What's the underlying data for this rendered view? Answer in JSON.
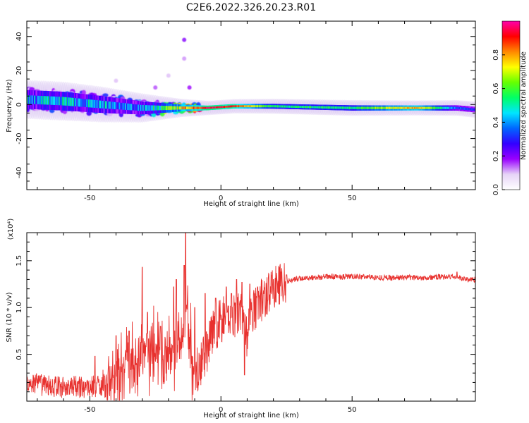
{
  "title": "C2E6.2022.326.20.23.R01",
  "colors": {
    "snr_line": "#e8312e",
    "colormap": [
      "#ffffff",
      "#e6d3f7",
      "#9900ff",
      "#3300ff",
      "#0066ff",
      "#00e5ff",
      "#00ff66",
      "#66ff00",
      "#ffff00",
      "#ff8800",
      "#ff0000",
      "#ff00aa"
    ]
  },
  "chart_data": [
    {
      "type": "heatmap",
      "xlabel": "Height of straight line (km)",
      "ylabel": "Frequency (Hz)",
      "xlim": [
        -74,
        97
      ],
      "ylim": [
        -50,
        49
      ],
      "xticks": [
        -50,
        0,
        50
      ],
      "yticks": [
        -40,
        -20,
        0,
        20,
        40
      ],
      "colorbar": {
        "label": "Normalized spectral amplitude",
        "range": [
          0.0,
          1.0
        ],
        "ticks": [
          0.0,
          0.2,
          0.4,
          0.6,
          0.8
        ]
      },
      "ridge": [
        {
          "x": -74,
          "f": 3,
          "spread": 5,
          "amp": 0.4
        },
        {
          "x": -60,
          "f": 2,
          "spread": 5,
          "amp": 0.45
        },
        {
          "x": -45,
          "f": 0,
          "spread": 4.5,
          "amp": 0.4
        },
        {
          "x": -30,
          "f": -2,
          "spread": 3.5,
          "amp": 0.38
        },
        {
          "x": -15,
          "f": -2,
          "spread": 1.8,
          "amp": 0.7
        },
        {
          "x": -5,
          "f": -2,
          "spread": 1.2,
          "amp": 0.95
        },
        {
          "x": 5,
          "f": -1,
          "spread": 1.2,
          "amp": 0.9
        },
        {
          "x": 20,
          "f": -1,
          "spread": 1.3,
          "amp": 0.55
        },
        {
          "x": 50,
          "f": -2,
          "spread": 1.4,
          "amp": 0.55
        },
        {
          "x": 75,
          "f": -2,
          "spread": 1.3,
          "amp": 0.82
        },
        {
          "x": 90,
          "f": -2,
          "spread": 1.4,
          "amp": 0.35
        },
        {
          "x": 97,
          "f": -3,
          "spread": 1.5,
          "amp": 0.3
        }
      ],
      "outliers": [
        {
          "x": -14,
          "f": 38,
          "amp": 0.2
        },
        {
          "x": -14,
          "f": 27,
          "amp": 0.12
        },
        {
          "x": -20,
          "f": 17,
          "amp": 0.1
        },
        {
          "x": -25,
          "f": 10,
          "amp": 0.15
        },
        {
          "x": -12,
          "f": 10,
          "amp": 0.18
        },
        {
          "x": -40,
          "f": 14,
          "amp": 0.1
        }
      ]
    },
    {
      "type": "line",
      "xlabel": "Height of straight line (km)",
      "ylabel": "SNR (10 * v/v)",
      "ymultiplier": "(x10⁴)",
      "xlim": [
        -74,
        97
      ],
      "ylim": [
        0,
        1.8
      ],
      "xticks": [
        -50,
        0,
        50
      ],
      "yticks": [
        0.5,
        1.0,
        1.5
      ],
      "ytick_labels": [
        "0.5",
        "1.0",
        "1.5"
      ],
      "series": [
        {
          "x": [
            -74,
            -70,
            -65,
            -60,
            -55,
            -50,
            -45,
            -42,
            -40,
            -37,
            -35,
            -32,
            -30,
            -28,
            -26,
            -24,
            -22,
            -20,
            -18,
            -16,
            -14,
            -13,
            -12,
            -11,
            -10,
            -8,
            -6,
            -4,
            -2,
            0,
            2,
            4,
            6,
            8,
            9,
            10,
            12,
            14,
            16,
            18,
            20,
            22,
            25,
            28,
            30,
            35,
            40,
            45,
            50,
            55,
            60,
            65,
            70,
            75,
            80,
            85,
            88,
            90,
            92,
            94,
            97
          ],
          "y": [
            0.2,
            0.18,
            0.16,
            0.15,
            0.15,
            0.15,
            0.18,
            0.22,
            0.28,
            0.4,
            0.45,
            0.5,
            0.55,
            0.55,
            0.55,
            0.55,
            0.5,
            0.55,
            0.6,
            0.65,
            0.85,
            1.0,
            0.75,
            0.45,
            0.3,
            0.4,
            0.5,
            0.65,
            0.8,
            0.85,
            0.9,
            0.9,
            0.95,
            1.0,
            0.75,
            0.7,
            0.95,
            1.05,
            1.1,
            1.15,
            1.22,
            1.25,
            1.28,
            1.3,
            1.31,
            1.32,
            1.33,
            1.33,
            1.33,
            1.33,
            1.32,
            1.32,
            1.32,
            1.32,
            1.32,
            1.33,
            1.33,
            1.32,
            1.31,
            1.3,
            1.3
          ]
        }
      ],
      "spikes": [
        {
          "x": -48,
          "y": 0.48
        },
        {
          "x": -40,
          "y": 0.7
        },
        {
          "x": -35,
          "y": 0.75
        },
        {
          "x": -30,
          "y": 1.43
        },
        {
          "x": -28,
          "y": 0.95
        },
        {
          "x": -23,
          "y": 0.8
        },
        {
          "x": -18,
          "y": 1.22
        },
        {
          "x": -17,
          "y": 1.3
        },
        {
          "x": -14,
          "y": 1.45
        },
        {
          "x": -13.5,
          "y": 1.81
        },
        {
          "x": -10,
          "y": 1.0
        },
        {
          "x": -6,
          "y": 1.15
        },
        {
          "x": -2,
          "y": 1.1
        },
        {
          "x": 2,
          "y": 1.22
        },
        {
          "x": 4,
          "y": 1.15
        },
        {
          "x": 6,
          "y": 1.3
        },
        {
          "x": 8,
          "y": 1.27
        },
        {
          "x": 9,
          "y": 0.28
        },
        {
          "x": 11,
          "y": 1.25
        },
        {
          "x": 14,
          "y": 1.22
        },
        {
          "x": 20,
          "y": 1.3
        },
        {
          "x": 25,
          "y": 1.35
        },
        {
          "x": 90,
          "y": 1.38
        }
      ]
    }
  ]
}
